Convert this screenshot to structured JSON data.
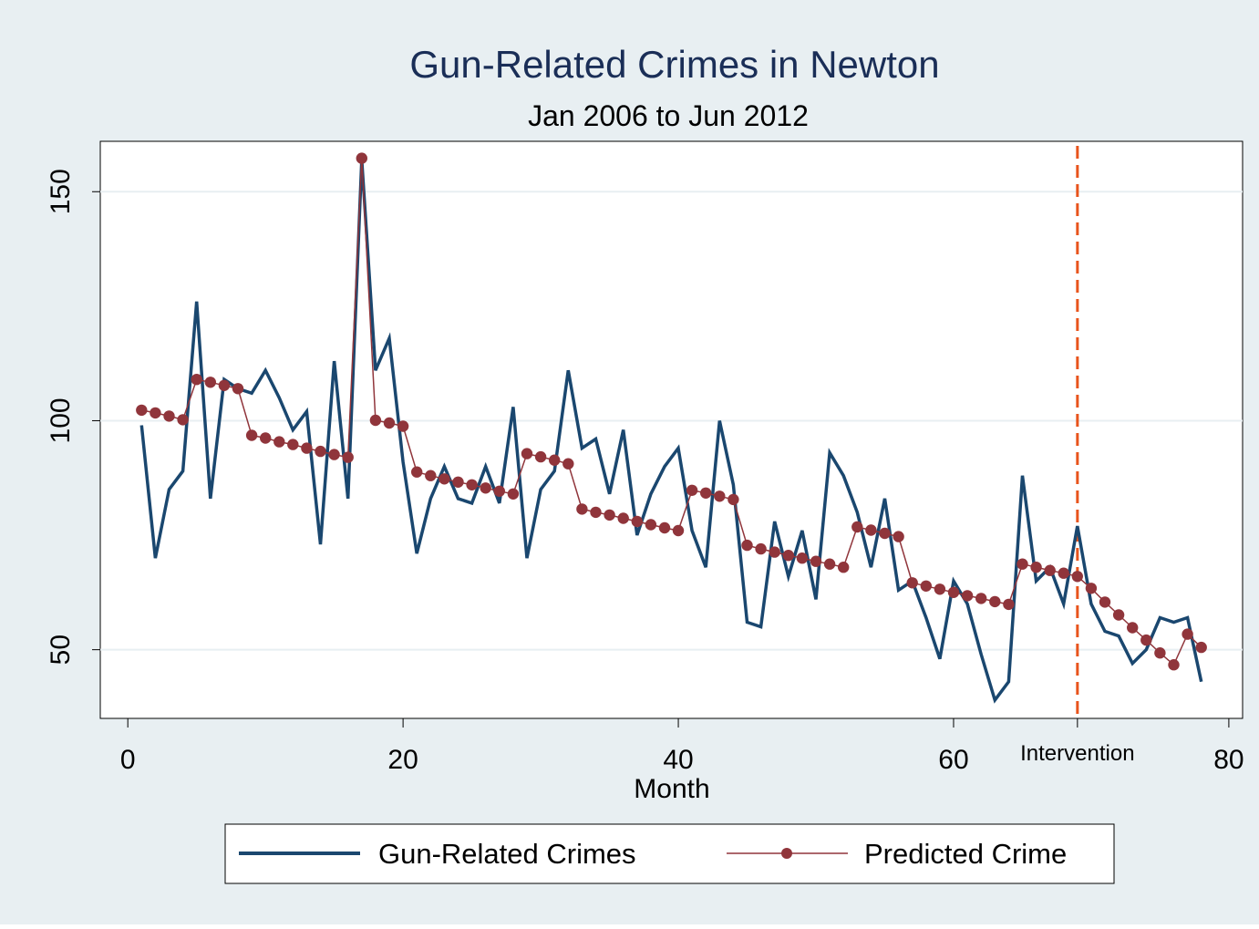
{
  "chart_data": {
    "type": "line",
    "title": "Gun-Related Crimes in Newton",
    "subtitle": "Jan 2006 to Jun 2012",
    "xlabel": "Month",
    "ylabel": "",
    "xlim": [
      -2,
      81
    ],
    "ylim": [
      35,
      161
    ],
    "x_ticks": [
      0,
      20,
      40,
      60,
      80
    ],
    "x_tick_labels": [
      "0",
      "20",
      "40",
      "60",
      "80"
    ],
    "y_ticks": [
      50,
      100,
      150
    ],
    "y_tick_labels": [
      "50",
      "100",
      "150"
    ],
    "grid": "horizontal",
    "legend_position": "bottom",
    "intervention": {
      "x": 69,
      "label": "Intervention",
      "color": "#e8541c"
    },
    "colors": {
      "background": "#e8eff2",
      "plot_background": "#ffffff",
      "grid": "#e8eff2",
      "title": "#1a2e57",
      "series_actual": "#1a476f",
      "series_predicted": "#90353b"
    },
    "x": [
      1,
      2,
      3,
      4,
      5,
      6,
      7,
      8,
      9,
      10,
      11,
      12,
      13,
      14,
      15,
      16,
      17,
      18,
      19,
      20,
      21,
      22,
      23,
      24,
      25,
      26,
      27,
      28,
      29,
      30,
      31,
      32,
      33,
      34,
      35,
      36,
      37,
      38,
      39,
      40,
      41,
      42,
      43,
      44,
      45,
      46,
      47,
      48,
      49,
      50,
      51,
      52,
      53,
      54,
      55,
      56,
      57,
      58,
      59,
      60,
      61,
      62,
      63,
      64,
      65,
      66,
      67,
      68,
      69,
      70,
      71,
      72,
      73,
      74,
      75,
      76,
      77,
      78
    ],
    "series": [
      {
        "name": "Gun-Related Crimes",
        "style": "line",
        "values": [
          99,
          70,
          85,
          89,
          126,
          83,
          109,
          107,
          106,
          111,
          105,
          98,
          102,
          73,
          113,
          83,
          157,
          111,
          118,
          91,
          71,
          83,
          90,
          83,
          82,
          90,
          82,
          103,
          70,
          85,
          89,
          111,
          94,
          96,
          84,
          98,
          75,
          84,
          90,
          94,
          76,
          68,
          100,
          86,
          56,
          55,
          78,
          66,
          76,
          61,
          93,
          88,
          80,
          68,
          83,
          63,
          65,
          57,
          48,
          65,
          60,
          49,
          39,
          43,
          88,
          65,
          68,
          60,
          77,
          60,
          54,
          53,
          47,
          50,
          57,
          56,
          57,
          43
        ]
      },
      {
        "name": "Predicted Crime",
        "style": "line-marker",
        "values": [
          102.3,
          101.7,
          101,
          100.2,
          109,
          108.4,
          107.7,
          107,
          96.8,
          96.2,
          95.4,
          94.8,
          94,
          93.3,
          92.6,
          92,
          157.3,
          100.1,
          99.5,
          98.8,
          88.8,
          88,
          87.3,
          86.6,
          86,
          85.3,
          84.6,
          84,
          92.8,
          92.1,
          91.4,
          90.6,
          80.7,
          80,
          79.4,
          78.7,
          78,
          77.3,
          76.6,
          76,
          84.8,
          84.2,
          83.5,
          82.8,
          72.8,
          72,
          71.3,
          70.6,
          70,
          69.3,
          68.7,
          68,
          76.8,
          76.1,
          75.4,
          74.7,
          64.6,
          63.9,
          63.2,
          62.5,
          61.8,
          61.2,
          60.5,
          59.9,
          68.7,
          68,
          67.3,
          66.7,
          66,
          63.4,
          60.4,
          57.6,
          54.8,
          52.1,
          49.3,
          46.7,
          53.4,
          50.5
        ]
      }
    ]
  }
}
